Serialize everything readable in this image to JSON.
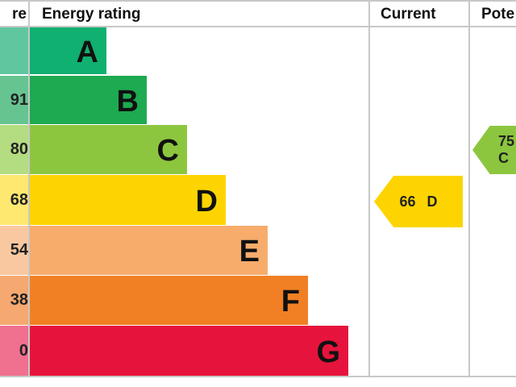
{
  "chart_data": {
    "type": "bar",
    "headers": {
      "score": "re",
      "rating": "Energy rating",
      "current": "Current",
      "potential": "Pote"
    },
    "categories": [
      "A",
      "B",
      "C",
      "D",
      "E",
      "F",
      "G"
    ],
    "score_labels": [
      "",
      "91",
      "80",
      "68",
      "54",
      "38",
      "0"
    ],
    "bar_colors": [
      "#10b070",
      "#1daa50",
      "#8cc63f",
      "#fdd400",
      "#f7ac6c",
      "#f08023",
      "#e6143c"
    ],
    "score_colors": [
      "#5fc6a0",
      "#66c490",
      "#b4dc80",
      "#ffe870",
      "#f9c8a0",
      "#f5a870",
      "#f07090"
    ],
    "current": {
      "value": "66",
      "band": "D",
      "color": "#fdd400"
    },
    "potential": {
      "value": "75",
      "band": "C",
      "color": "#8cc63f"
    }
  }
}
